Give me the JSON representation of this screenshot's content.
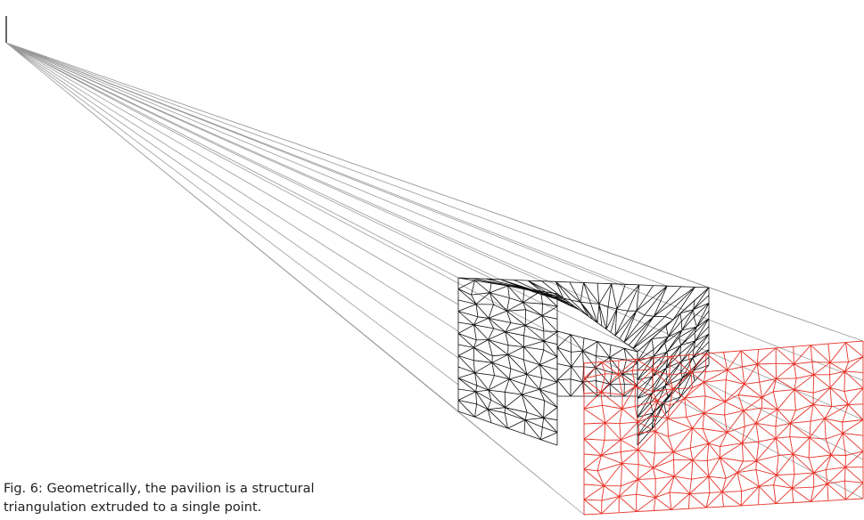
{
  "figure": {
    "caption": [
      "Fig. 6: Geometrically, the pavilion is a structural",
      "triangulation extruded to a single point."
    ]
  }
}
